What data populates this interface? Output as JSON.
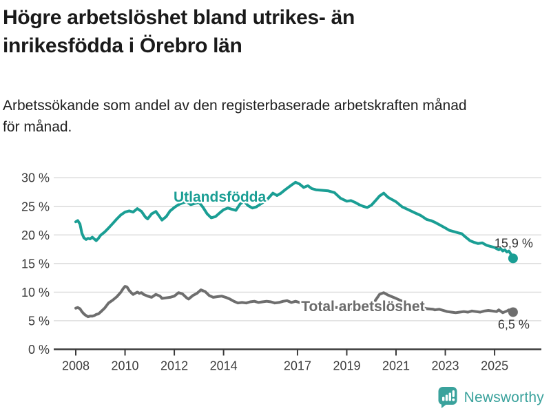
{
  "header": {
    "title_lines": [
      "Högre arbetslöshet bland utrikes- än",
      "inrikesfödda i Örebro län"
    ],
    "subtitle_lines": [
      "Arbetssökande som andel av den registerbaserade arbetskraften månad",
      "för månad."
    ]
  },
  "chart_data": {
    "type": "line",
    "unit": "%",
    "grid": "horizontal",
    "colors": {
      "utlandsfodda": "#1a9e94",
      "total": "#6e6e6e",
      "gridline": "#d9d9d9",
      "axis": "#3a3a3a",
      "tick_text": "#3c3c3c",
      "value_label_text": "#333333"
    },
    "x_axis": {
      "range": [
        2007.6,
        2026.1
      ],
      "ticks": [
        {
          "value": 2008,
          "label": "2008"
        },
        {
          "value": 2010,
          "label": "2010"
        },
        {
          "value": 2012,
          "label": "2012"
        },
        {
          "value": 2014,
          "label": "2014"
        },
        {
          "value": 2017,
          "label": "2017"
        },
        {
          "value": 2019,
          "label": "2019"
        },
        {
          "value": 2021,
          "label": "2021"
        },
        {
          "value": 2023,
          "label": "2023"
        },
        {
          "value": 2025,
          "label": "2025"
        }
      ]
    },
    "y_axis": {
      "range": [
        0,
        30
      ],
      "ticks": [
        {
          "value": 0,
          "label": "0 %"
        },
        {
          "value": 5,
          "label": "5 %"
        },
        {
          "value": 10,
          "label": "10 %"
        },
        {
          "value": 15,
          "label": "15 %"
        },
        {
          "value": 20,
          "label": "20 %"
        },
        {
          "value": 25,
          "label": "25 %"
        },
        {
          "value": 30,
          "label": "30 %"
        }
      ]
    },
    "series": [
      {
        "id": "utlandsfodda",
        "name": "Utlandsfödda",
        "color": "#1a9e94",
        "label": {
          "text": "Utlandsfödda",
          "year": 2011.97,
          "pct": 25.82
        },
        "end_label": {
          "text": "15,9 %",
          "position": "above"
        },
        "end_value": 15.9,
        "points": [
          [
            2008.0,
            22.3
          ],
          [
            2008.08,
            22.5
          ],
          [
            2008.17,
            21.9
          ],
          [
            2008.25,
            20.3
          ],
          [
            2008.33,
            19.5
          ],
          [
            2008.42,
            19.2
          ],
          [
            2008.5,
            19.4
          ],
          [
            2008.58,
            19.3
          ],
          [
            2008.67,
            19.6
          ],
          [
            2008.75,
            19.3
          ],
          [
            2008.83,
            19.0
          ],
          [
            2008.92,
            19.4
          ],
          [
            2009.0,
            19.9
          ],
          [
            2009.17,
            20.5
          ],
          [
            2009.33,
            21.2
          ],
          [
            2009.5,
            22.0
          ],
          [
            2009.67,
            22.8
          ],
          [
            2009.83,
            23.5
          ],
          [
            2010.0,
            24.0
          ],
          [
            2010.17,
            24.2
          ],
          [
            2010.33,
            24.0
          ],
          [
            2010.5,
            24.6
          ],
          [
            2010.67,
            24.1
          ],
          [
            2010.83,
            23.1
          ],
          [
            2010.92,
            22.8
          ],
          [
            2011.08,
            23.7
          ],
          [
            2011.25,
            24.1
          ],
          [
            2011.42,
            23.1
          ],
          [
            2011.5,
            22.6
          ],
          [
            2011.67,
            23.2
          ],
          [
            2011.83,
            24.2
          ],
          [
            2012.0,
            24.8
          ],
          [
            2012.17,
            25.3
          ],
          [
            2012.33,
            25.6
          ],
          [
            2012.5,
            25.8
          ],
          [
            2012.67,
            25.3
          ],
          [
            2012.83,
            25.5
          ],
          [
            2013.0,
            25.7
          ],
          [
            2013.17,
            24.8
          ],
          [
            2013.33,
            23.7
          ],
          [
            2013.5,
            23.0
          ],
          [
            2013.67,
            23.2
          ],
          [
            2013.83,
            23.8
          ],
          [
            2014.0,
            24.4
          ],
          [
            2014.17,
            24.7
          ],
          [
            2014.33,
            24.5
          ],
          [
            2014.5,
            24.3
          ],
          [
            2014.67,
            25.4
          ],
          [
            2014.83,
            25.9
          ],
          [
            2015.0,
            25.1
          ],
          [
            2015.17,
            24.7
          ],
          [
            2015.33,
            24.9
          ],
          [
            2015.5,
            25.4
          ],
          [
            2015.75,
            26.1
          ],
          [
            2016.0,
            27.3
          ],
          [
            2016.17,
            26.9
          ],
          [
            2016.33,
            27.3
          ],
          [
            2016.5,
            27.9
          ],
          [
            2016.75,
            28.7
          ],
          [
            2016.92,
            29.2
          ],
          [
            2017.08,
            28.9
          ],
          [
            2017.25,
            28.3
          ],
          [
            2017.42,
            28.6
          ],
          [
            2017.58,
            28.1
          ],
          [
            2017.75,
            27.9
          ],
          [
            2018.0,
            27.8
          ],
          [
            2018.25,
            27.7
          ],
          [
            2018.5,
            27.4
          ],
          [
            2018.75,
            26.4
          ],
          [
            2019.0,
            25.9
          ],
          [
            2019.17,
            26.0
          ],
          [
            2019.33,
            25.7
          ],
          [
            2019.5,
            25.3
          ],
          [
            2019.67,
            25.0
          ],
          [
            2019.83,
            24.8
          ],
          [
            2020.0,
            25.2
          ],
          [
            2020.17,
            26.0
          ],
          [
            2020.33,
            26.8
          ],
          [
            2020.5,
            27.3
          ],
          [
            2020.67,
            26.6
          ],
          [
            2020.83,
            26.2
          ],
          [
            2021.0,
            25.8
          ],
          [
            2021.25,
            24.9
          ],
          [
            2021.5,
            24.4
          ],
          [
            2021.75,
            23.9
          ],
          [
            2022.0,
            23.4
          ],
          [
            2022.25,
            22.7
          ],
          [
            2022.42,
            22.5
          ],
          [
            2022.58,
            22.2
          ],
          [
            2022.75,
            21.8
          ],
          [
            2023.0,
            21.2
          ],
          [
            2023.17,
            20.8
          ],
          [
            2023.33,
            20.6
          ],
          [
            2023.5,
            20.4
          ],
          [
            2023.67,
            20.2
          ],
          [
            2023.83,
            19.6
          ],
          [
            2024.0,
            19.0
          ],
          [
            2024.17,
            18.7
          ],
          [
            2024.33,
            18.5
          ],
          [
            2024.5,
            18.6
          ],
          [
            2024.67,
            18.2
          ],
          [
            2024.83,
            18.0
          ],
          [
            2025.0,
            17.8
          ],
          [
            2025.08,
            17.6
          ],
          [
            2025.17,
            17.4
          ],
          [
            2025.25,
            17.6
          ],
          [
            2025.33,
            17.2
          ],
          [
            2025.42,
            17.4
          ],
          [
            2025.5,
            17.0
          ],
          [
            2025.58,
            17.2
          ],
          [
            2025.67,
            16.6
          ],
          [
            2025.75,
            15.9
          ]
        ]
      },
      {
        "id": "total-arbetsloshet",
        "name": "Total arbetslöshet",
        "color": "#6e6e6e",
        "label": {
          "text": "Total arbetslöshet",
          "year": 2017.15,
          "pct": 6.7
        },
        "end_label": {
          "text": "6,5 %",
          "position": "below"
        },
        "end_value": 6.5,
        "points": [
          [
            2008.0,
            7.2
          ],
          [
            2008.08,
            7.3
          ],
          [
            2008.17,
            7.1
          ],
          [
            2008.25,
            6.6
          ],
          [
            2008.33,
            6.2
          ],
          [
            2008.42,
            5.9
          ],
          [
            2008.5,
            5.7
          ],
          [
            2008.58,
            5.8
          ],
          [
            2008.67,
            5.8
          ],
          [
            2008.75,
            5.9
          ],
          [
            2008.83,
            6.1
          ],
          [
            2008.92,
            6.2
          ],
          [
            2009.0,
            6.5
          ],
          [
            2009.17,
            7.2
          ],
          [
            2009.33,
            8.1
          ],
          [
            2009.5,
            8.6
          ],
          [
            2009.67,
            9.2
          ],
          [
            2009.83,
            10.0
          ],
          [
            2009.92,
            10.6
          ],
          [
            2010.0,
            11.0
          ],
          [
            2010.08,
            10.9
          ],
          [
            2010.17,
            10.3
          ],
          [
            2010.25,
            9.9
          ],
          [
            2010.33,
            9.6
          ],
          [
            2010.5,
            10.0
          ],
          [
            2010.58,
            9.8
          ],
          [
            2010.67,
            9.9
          ],
          [
            2010.75,
            9.6
          ],
          [
            2010.92,
            9.3
          ],
          [
            2011.08,
            9.1
          ],
          [
            2011.25,
            9.6
          ],
          [
            2011.42,
            9.3
          ],
          [
            2011.5,
            8.9
          ],
          [
            2011.67,
            9.0
          ],
          [
            2011.83,
            9.1
          ],
          [
            2012.0,
            9.3
          ],
          [
            2012.17,
            9.9
          ],
          [
            2012.33,
            9.7
          ],
          [
            2012.5,
            9.0
          ],
          [
            2012.58,
            8.8
          ],
          [
            2012.75,
            9.4
          ],
          [
            2012.92,
            9.8
          ],
          [
            2013.08,
            10.4
          ],
          [
            2013.25,
            10.1
          ],
          [
            2013.42,
            9.4
          ],
          [
            2013.58,
            9.1
          ],
          [
            2013.75,
            9.2
          ],
          [
            2013.92,
            9.3
          ],
          [
            2014.08,
            9.1
          ],
          [
            2014.25,
            8.8
          ],
          [
            2014.42,
            8.4
          ],
          [
            2014.58,
            8.1
          ],
          [
            2014.75,
            8.2
          ],
          [
            2014.92,
            8.1
          ],
          [
            2015.08,
            8.3
          ],
          [
            2015.25,
            8.4
          ],
          [
            2015.42,
            8.2
          ],
          [
            2015.58,
            8.3
          ],
          [
            2015.75,
            8.4
          ],
          [
            2015.92,
            8.3
          ],
          [
            2016.08,
            8.1
          ],
          [
            2016.25,
            8.2
          ],
          [
            2016.42,
            8.4
          ],
          [
            2016.58,
            8.5
          ],
          [
            2016.75,
            8.2
          ],
          [
            2016.92,
            8.4
          ],
          [
            2017.08,
            8.2
          ],
          [
            2017.33,
            8.0
          ],
          [
            2017.58,
            7.9
          ],
          [
            2017.83,
            7.7
          ],
          [
            2018.08,
            7.6
          ],
          [
            2018.33,
            7.4
          ],
          [
            2018.58,
            7.3
          ],
          [
            2018.83,
            7.2
          ],
          [
            2019.08,
            7.1
          ],
          [
            2019.33,
            7.0
          ],
          [
            2019.58,
            6.9
          ],
          [
            2019.83,
            7.0
          ],
          [
            2020.0,
            7.3
          ],
          [
            2020.17,
            8.6
          ],
          [
            2020.33,
            9.6
          ],
          [
            2020.5,
            9.9
          ],
          [
            2020.67,
            9.5
          ],
          [
            2020.83,
            9.2
          ],
          [
            2021.0,
            8.9
          ],
          [
            2021.25,
            8.4
          ],
          [
            2021.5,
            8.0
          ],
          [
            2021.75,
            7.7
          ],
          [
            2022.0,
            7.4
          ],
          [
            2022.25,
            7.1
          ],
          [
            2022.5,
            7.0
          ],
          [
            2022.58,
            6.9
          ],
          [
            2022.75,
            7.0
          ],
          [
            2022.92,
            6.8
          ],
          [
            2023.08,
            6.6
          ],
          [
            2023.25,
            6.5
          ],
          [
            2023.42,
            6.4
          ],
          [
            2023.58,
            6.5
          ],
          [
            2023.75,
            6.6
          ],
          [
            2023.92,
            6.5
          ],
          [
            2024.08,
            6.7
          ],
          [
            2024.25,
            6.6
          ],
          [
            2024.42,
            6.5
          ],
          [
            2024.58,
            6.7
          ],
          [
            2024.75,
            6.8
          ],
          [
            2024.92,
            6.7
          ],
          [
            2025.08,
            6.6
          ],
          [
            2025.17,
            6.9
          ],
          [
            2025.33,
            6.4
          ],
          [
            2025.5,
            6.7
          ],
          [
            2025.58,
            6.9
          ],
          [
            2025.67,
            6.8
          ],
          [
            2025.75,
            6.5
          ]
        ]
      }
    ]
  },
  "footer": {
    "brand": "Newsworthy",
    "brand_color": "#3aa29c"
  }
}
